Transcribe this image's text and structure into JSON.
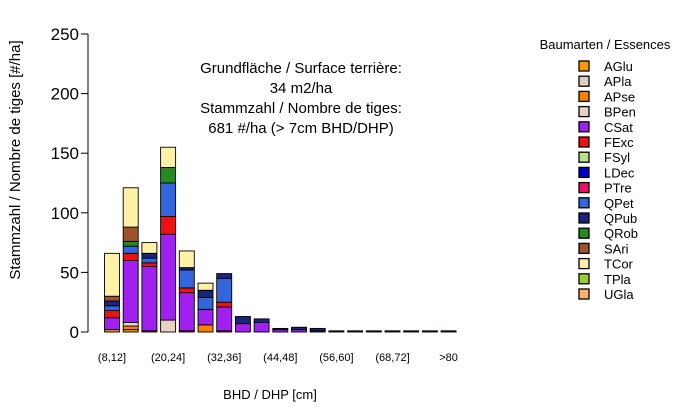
{
  "chart_data": {
    "type": "bar",
    "stacked": true,
    "ylabel": "Stammzahl / Nombre de tiges [#/ha]",
    "xlabel": "BHD / DHP [cm]",
    "ylim": [
      0,
      250
    ],
    "yticks": [
      "0",
      "50",
      "100",
      "150",
      "200",
      "250"
    ],
    "ytick_values": [
      0,
      50,
      100,
      150,
      200,
      250
    ],
    "categories": [
      "(8,12]",
      "(12,16]",
      "(16,20]",
      "(20,24]",
      "(24,28]",
      "(28,32]",
      "(32,36]",
      "(36,40]",
      "(40,44]",
      "(44,48]",
      "(48,52]",
      "(52,56]",
      "(56,60]",
      "(60,64]",
      "(64,68]",
      "(68,72]",
      "(72,76]",
      "(76,80]",
      ">80"
    ],
    "shown_category_labels": [
      "(8,12]",
      "(20,24]",
      "(32,36]",
      "(44,48]",
      "(56,60]",
      "(68,72]",
      ">80"
    ],
    "annotation": {
      "line1": "Grundfläche / Surface terrière:",
      "line2": "34 m2/ha",
      "line3": "Stammzahl / Nombre de tiges:",
      "line4": "681 #/ha (> 7cm BHD/DHP)"
    },
    "legend_title": "Baumarten / Essences",
    "legend_position": "right",
    "series": [
      {
        "name": "AGlu",
        "color": "#FF9900",
        "values": [
          2,
          2,
          0,
          0,
          0,
          0,
          0,
          0,
          0,
          0,
          0,
          0,
          0,
          0,
          0,
          0,
          0,
          0,
          0
        ]
      },
      {
        "name": "APla",
        "color": "#DDD0BC",
        "values": [
          0,
          0,
          0,
          0,
          0,
          0,
          0,
          0,
          0,
          0,
          0,
          0,
          0,
          0,
          0,
          0,
          0,
          0,
          0
        ]
      },
      {
        "name": "APse",
        "color": "#FF8000",
        "values": [
          0,
          3,
          1,
          0,
          1,
          6,
          1,
          0,
          0,
          0,
          0,
          0,
          0,
          0,
          0,
          0,
          0,
          0,
          0
        ]
      },
      {
        "name": "BPen",
        "color": "#E6D3C2",
        "values": [
          0,
          3,
          0,
          10,
          0,
          0,
          0,
          0,
          0,
          0,
          0,
          0,
          0,
          0,
          0,
          0,
          0,
          0,
          0
        ]
      },
      {
        "name": "CSat",
        "color": "#A020F0",
        "values": [
          10,
          52,
          54,
          72,
          32,
          13,
          20,
          7,
          8,
          2,
          2,
          1,
          0,
          0,
          0,
          0,
          0,
          0,
          0
        ]
      },
      {
        "name": "FExc",
        "color": "#EE1111",
        "values": [
          6,
          6,
          3,
          15,
          4,
          0,
          4,
          0,
          0,
          0,
          0,
          0,
          0,
          0,
          0,
          0,
          0,
          0,
          0
        ]
      },
      {
        "name": "FSyl",
        "color": "#B6E38A",
        "values": [
          0,
          0,
          0,
          0,
          0,
          0,
          0,
          0,
          0,
          0,
          0,
          0,
          0,
          0,
          0,
          0,
          0,
          0,
          0
        ]
      },
      {
        "name": "LDec",
        "color": "#0000CC",
        "values": [
          0,
          0,
          0,
          0,
          0,
          0,
          0,
          0,
          0,
          0,
          0,
          0,
          0,
          0,
          0,
          0,
          0,
          0,
          0
        ]
      },
      {
        "name": "PTre",
        "color": "#EE1166",
        "values": [
          0,
          0,
          0,
          0,
          0,
          0,
          0,
          0,
          0,
          0,
          0,
          0,
          0,
          0,
          0,
          0,
          0,
          0,
          0
        ]
      },
      {
        "name": "QPet",
        "color": "#3366DD",
        "values": [
          4,
          6,
          4,
          28,
          15,
          10,
          20,
          0,
          0,
          0,
          0,
          0,
          0,
          0,
          0,
          0,
          0,
          0,
          0
        ]
      },
      {
        "name": "QPub",
        "color": "#1A237E",
        "values": [
          4,
          0,
          4,
          0,
          2,
          6,
          4,
          6,
          3,
          1,
          2,
          2,
          1,
          1,
          1,
          1,
          1,
          1,
          1
        ]
      },
      {
        "name": "QRob",
        "color": "#228B22",
        "values": [
          0,
          4,
          0,
          13,
          0,
          0,
          0,
          0,
          0,
          0,
          0,
          0,
          0,
          0,
          0,
          0,
          0,
          0,
          0
        ]
      },
      {
        "name": "SAri",
        "color": "#A0522D",
        "values": [
          4,
          12,
          0,
          0,
          0,
          0,
          0,
          0,
          0,
          0,
          0,
          0,
          0,
          0,
          0,
          0,
          0,
          0,
          0
        ]
      },
      {
        "name": "TCor",
        "color": "#FFF2A8",
        "values": [
          36,
          33,
          9,
          17,
          14,
          6,
          0,
          0,
          0,
          0,
          0,
          0,
          0,
          0,
          0,
          0,
          0,
          0,
          0
        ]
      },
      {
        "name": "TPla",
        "color": "#9ACD32",
        "values": [
          0,
          0,
          0,
          0,
          0,
          0,
          0,
          0,
          0,
          0,
          0,
          0,
          0,
          0,
          0,
          0,
          0,
          0,
          0
        ]
      },
      {
        "name": "UGla",
        "color": "#FFB26B",
        "values": [
          0,
          0,
          0,
          0,
          0,
          0,
          0,
          0,
          0,
          0,
          0,
          0,
          0,
          0,
          0,
          0,
          0,
          0,
          0
        ]
      }
    ]
  }
}
